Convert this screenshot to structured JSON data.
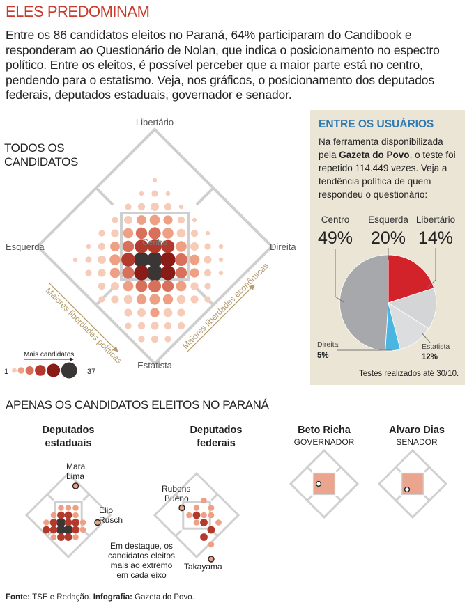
{
  "header": {
    "title": "ELES PREDOMINAM",
    "intro": "Entre os 86 candidatos eleitos no Paraná, 64% participaram do Candibook e responderam ao Questionário de Nolan, que indica o posicionamento no espectro político. Entre os eleitos, é possível perceber que a maior parte está no centro, pendendo para o estatismo. Veja, nos gráficos, o posicionamento dos deputados federais, deputados estaduais, governador e senador."
  },
  "colors": {
    "red": "#c73a2c",
    "blue": "#2f7ab3",
    "beige": "#ebe5d6",
    "scale": [
      "#f6cbb8",
      "#eea084",
      "#d8705c",
      "#b23a2d",
      "#8a1c17",
      "#3a3636"
    ],
    "pie": [
      "#a7a8ab",
      "#d2232a",
      "#d4d5d7",
      "#dcdddf",
      "#4ab5e0"
    ]
  },
  "main_chart": {
    "title_line1": "TODOS OS",
    "title_line2": "CANDIDATOS",
    "axes": {
      "top": "Libertário",
      "left": "Esquerda",
      "right": "Direita",
      "bottom": "Estatista",
      "center": "Centro",
      "left_arrow": "Maiores liberdades políticas",
      "right_arrow": "Maiores liberdades econômicas"
    },
    "legend": {
      "label": "Mais candidatos",
      "min": "1",
      "max": "37"
    }
  },
  "sidebar": {
    "title": "ENTRE OS USUÁRIOS",
    "text_before": "Na ferramenta disponibilizada pela ",
    "text_bold": "Gazeta do Povo",
    "text_after": ", o teste foi repetido 114.449 vezes. Veja a tendência política de quem respondeu o questionário:",
    "footnote": "Testes realizados até 30/10."
  },
  "chart_data": [
    {
      "type": "scatter",
      "title": "TODOS OS CANDIDATOS",
      "description_axes": [
        "Esquerda",
        "Direita",
        "Libertário",
        "Estatista"
      ],
      "size_range": [
        1,
        37
      ],
      "points": [
        {
          "x": 0.0,
          "y": -2.0,
          "n": 37
        },
        {
          "x": -1.0,
          "y": -1.0,
          "n": 34
        },
        {
          "x": 0.0,
          "y": -1.0,
          "n": 33
        },
        {
          "x": 1.0,
          "y": -1.0,
          "n": 30
        },
        {
          "x": -1.0,
          "y": -2.0,
          "n": 30
        },
        {
          "x": 1.0,
          "y": -2.0,
          "n": 28
        },
        {
          "x": 0.0,
          "y": 0.0,
          "n": 24
        },
        {
          "x": -1.0,
          "y": 0.0,
          "n": 22
        },
        {
          "x": 1.0,
          "y": 0.0,
          "n": 20
        },
        {
          "x": -2.0,
          "y": -1.0,
          "n": 24
        },
        {
          "x": 2.0,
          "y": -1.0,
          "n": 18
        },
        {
          "x": 0.0,
          "y": -3.0,
          "n": 18
        },
        {
          "x": -1.0,
          "y": 1.0,
          "n": 14
        },
        {
          "x": 0.0,
          "y": 1.0,
          "n": 16
        },
        {
          "x": 1.0,
          "y": 1.0,
          "n": 12
        },
        {
          "x": -2.0,
          "y": 0.0,
          "n": 14
        },
        {
          "x": 2.0,
          "y": 0.0,
          "n": 12
        },
        {
          "x": -2.0,
          "y": -2.0,
          "n": 16
        },
        {
          "x": 2.0,
          "y": -2.0,
          "n": 14
        },
        {
          "x": -1.0,
          "y": -3.0,
          "n": 15
        },
        {
          "x": 1.0,
          "y": -3.0,
          "n": 14
        },
        {
          "x": -3.0,
          "y": -1.0,
          "n": 12
        },
        {
          "x": 3.0,
          "y": -1.0,
          "n": 10
        },
        {
          "x": 0.0,
          "y": -4.0,
          "n": 11
        },
        {
          "x": 0.0,
          "y": 2.0,
          "n": 10
        },
        {
          "x": -1.0,
          "y": 2.0,
          "n": 8
        },
        {
          "x": 1.0,
          "y": 2.0,
          "n": 7
        },
        {
          "x": -2.0,
          "y": 1.0,
          "n": 9
        },
        {
          "x": 2.0,
          "y": 1.0,
          "n": 6
        },
        {
          "x": -3.0,
          "y": 0.0,
          "n": 8
        },
        {
          "x": 3.0,
          "y": 0.0,
          "n": 5
        },
        {
          "x": -3.0,
          "y": -2.0,
          "n": 9
        },
        {
          "x": 3.0,
          "y": -2.0,
          "n": 7
        },
        {
          "x": -2.0,
          "y": -3.0,
          "n": 10
        },
        {
          "x": 2.0,
          "y": -3.0,
          "n": 10
        },
        {
          "x": -1.0,
          "y": -4.0,
          "n": 9
        },
        {
          "x": 1.0,
          "y": -4.0,
          "n": 9
        },
        {
          "x": 0.0,
          "y": -5.0,
          "n": 7
        },
        {
          "x": -4.0,
          "y": -1.0,
          "n": 5
        },
        {
          "x": 4.0,
          "y": -1.0,
          "n": 4
        },
        {
          "x": 0.0,
          "y": 3.0,
          "n": 5
        },
        {
          "x": -1.0,
          "y": 3.0,
          "n": 3
        },
        {
          "x": 1.0,
          "y": 3.0,
          "n": 3
        },
        {
          "x": -2.0,
          "y": 2.0,
          "n": 5
        },
        {
          "x": 2.0,
          "y": 2.0,
          "n": 3
        },
        {
          "x": -3.0,
          "y": 1.0,
          "n": 4
        },
        {
          "x": 3.0,
          "y": 1.0,
          "n": 3
        },
        {
          "x": -4.0,
          "y": 0.0,
          "n": 3
        },
        {
          "x": 4.0,
          "y": 0.0,
          "n": 2
        },
        {
          "x": -4.0,
          "y": -2.0,
          "n": 4
        },
        {
          "x": 4.0,
          "y": -2.0,
          "n": 3
        },
        {
          "x": -3.0,
          "y": -3.0,
          "n": 5
        },
        {
          "x": 3.0,
          "y": -3.0,
          "n": 4
        },
        {
          "x": -2.0,
          "y": -4.0,
          "n": 6
        },
        {
          "x": 2.0,
          "y": -4.0,
          "n": 6
        },
        {
          "x": -1.0,
          "y": -5.0,
          "n": 5
        },
        {
          "x": 1.0,
          "y": -5.0,
          "n": 6
        },
        {
          "x": 0.0,
          "y": -6.0,
          "n": 4
        },
        {
          "x": -5.0,
          "y": -1.0,
          "n": 2
        },
        {
          "x": 5.0,
          "y": -1.0,
          "n": 1
        },
        {
          "x": 0.0,
          "y": 4.0,
          "n": 2
        },
        {
          "x": -1.0,
          "y": 4.0,
          "n": 1
        },
        {
          "x": 1.0,
          "y": 4.0,
          "n": 1
        },
        {
          "x": -2.0,
          "y": 3.0,
          "n": 2
        },
        {
          "x": 2.0,
          "y": 3.0,
          "n": 1
        },
        {
          "x": -3.0,
          "y": 2.0,
          "n": 2
        },
        {
          "x": 3.0,
          "y": 2.0,
          "n": 1
        },
        {
          "x": -4.0,
          "y": 1.0,
          "n": 2
        },
        {
          "x": 4.0,
          "y": 1.0,
          "n": 1
        },
        {
          "x": -5.0,
          "y": 0.0,
          "n": 1
        },
        {
          "x": 5.0,
          "y": 0.0,
          "n": 1
        },
        {
          "x": -4.0,
          "y": -3.0,
          "n": 3
        },
        {
          "x": 4.0,
          "y": -3.0,
          "n": 2
        },
        {
          "x": -3.0,
          "y": -4.0,
          "n": 4
        },
        {
          "x": 3.0,
          "y": -4.0,
          "n": 4
        },
        {
          "x": -2.0,
          "y": -5.0,
          "n": 4
        },
        {
          "x": 2.0,
          "y": -5.0,
          "n": 4
        },
        {
          "x": -1.0,
          "y": -6.0,
          "n": 3
        },
        {
          "x": 1.0,
          "y": -6.0,
          "n": 3
        },
        {
          "x": 0.0,
          "y": -7.0,
          "n": 3
        },
        {
          "x": -5.0,
          "y": -2.0,
          "n": 2
        },
        {
          "x": 5.0,
          "y": -2.0,
          "n": 1
        },
        {
          "x": 0.0,
          "y": 5.0,
          "n": 1
        },
        {
          "x": -6.0,
          "y": -1.0,
          "n": 1
        },
        {
          "x": -4.0,
          "y": -4.0,
          "n": 2
        },
        {
          "x": 4.0,
          "y": -4.0,
          "n": 2
        },
        {
          "x": -2.0,
          "y": -6.0,
          "n": 2
        },
        {
          "x": 2.0,
          "y": -6.0,
          "n": 3
        },
        {
          "x": -1.0,
          "y": -7.0,
          "n": 2
        },
        {
          "x": 1.0,
          "y": -7.0,
          "n": 2
        }
      ]
    },
    {
      "type": "pie",
      "title": "ENTRE OS USUÁRIOS",
      "slices": [
        {
          "label": "Centro",
          "value": 49,
          "display": "49%"
        },
        {
          "label": "Esquerda",
          "value": 20,
          "display": "20%"
        },
        {
          "label": "Libertário",
          "value": 14,
          "display": "14%"
        },
        {
          "label": "Estatista",
          "value": 12,
          "display": "12%"
        },
        {
          "label": "Direita",
          "value": 5,
          "display": "5%"
        }
      ]
    },
    {
      "type": "scatter",
      "section_title": "APENAS OS CANDIDATOS ELEITOS NO PARANÁ",
      "charts": [
        {
          "id": "estaduais",
          "title_line1": "Deputados",
          "title_line2": "estaduais",
          "points": [
            {
              "x": 0.0,
              "y": -2.0,
              "n": 3
            },
            {
              "x": -1.0,
              "y": -1.0,
              "n": 3
            },
            {
              "x": 0.0,
              "y": -1.0,
              "n": 2
            },
            {
              "x": 1.0,
              "y": -1.0,
              "n": 2
            },
            {
              "x": -1.0,
              "y": -2.0,
              "n": 3
            },
            {
              "x": 1.0,
              "y": -2.0,
              "n": 2
            },
            {
              "x": 0.0,
              "y": 0.0,
              "n": 2
            },
            {
              "x": -1.0,
              "y": 0.0,
              "n": 2
            },
            {
              "x": 1.0,
              "y": 0.0,
              "n": 1
            },
            {
              "x": -2.0,
              "y": -1.0,
              "n": 2
            },
            {
              "x": 2.0,
              "y": -1.0,
              "n": 1
            },
            {
              "x": 0.0,
              "y": -3.0,
              "n": 2
            },
            {
              "x": -1.0,
              "y": -3.0,
              "n": 2
            },
            {
              "x": 1.0,
              "y": -3.0,
              "n": 1
            },
            {
              "x": -2.0,
              "y": -2.0,
              "n": 2
            },
            {
              "x": -2.0,
              "y": 0.0,
              "n": 1
            },
            {
              "x": 0.0,
              "y": 1.0,
              "n": 1
            },
            {
              "x": -1.0,
              "y": 1.0,
              "n": 1
            },
            {
              "x": -2.0,
              "y": -3.0,
              "n": 1
            },
            {
              "x": 2.0,
              "y": -2.0,
              "n": 1
            },
            {
              "x": -3.0,
              "y": -2.0,
              "n": 2
            },
            {
              "x": -3.0,
              "y": -1.0,
              "n": 1
            },
            {
              "x": 1.0,
              "y": 1.0,
              "n": 1
            }
          ],
          "highlights": [
            {
              "x": 1.0,
              "y": 4.0,
              "name1": "Mara",
              "name2": "Lima"
            },
            {
              "x": 4.0,
              "y": -1.0,
              "name1": "Elio",
              "name2": "Rusch"
            }
          ]
        },
        {
          "id": "federais",
          "title_line1": "Deputados",
          "title_line2": "federais",
          "points": [
            {
              "x": 0.0,
              "y": 0.0,
              "n": 2
            },
            {
              "x": 1.0,
              "y": -1.0,
              "n": 2
            },
            {
              "x": 0.0,
              "y": -1.0,
              "n": 1
            },
            {
              "x": 2.0,
              "y": -2.0,
              "n": 2
            },
            {
              "x": 1.0,
              "y": -3.0,
              "n": 2
            },
            {
              "x": 2.0,
              "y": -4.0,
              "n": 1
            },
            {
              "x": 1.0,
              "y": 0.0,
              "n": 1
            },
            {
              "x": 2.0,
              "y": 0.0,
              "n": 1
            },
            {
              "x": 3.0,
              "y": -1.0,
              "n": 1
            },
            {
              "x": 1.0,
              "y": 2.0,
              "n": 1
            },
            {
              "x": 2.0,
              "y": 1.0,
              "n": 1
            },
            {
              "x": -1.0,
              "y": 0.0,
              "n": 1
            },
            {
              "x": 0.0,
              "y": 1.0,
              "n": 1
            }
          ],
          "highlights": [
            {
              "x": -2.0,
              "y": 1.0,
              "name1": "Rubens",
              "name2": "Bueno"
            },
            {
              "x": 2.0,
              "y": -6.0,
              "name1": "Takayama",
              "name2": ""
            }
          ],
          "note_lines": [
            "Em destaque, os",
            "candidatos eleitos",
            "mais ao extremo",
            "em cada eixo"
          ]
        },
        {
          "id": "governador",
          "title_line1": "Beto Richa",
          "title_line2": "GOVERNADOR",
          "points": [],
          "highlights": [
            {
              "x": -1.0,
              "y": 0.0,
              "name1": "",
              "name2": ""
            }
          ]
        },
        {
          "id": "senador",
          "title_line1": "Alvaro Dias",
          "title_line2": "SENADOR",
          "points": [],
          "highlights": [
            {
              "x": -1.0,
              "y": -1.0,
              "name1": "",
              "name2": ""
            }
          ]
        }
      ]
    }
  ],
  "footer": {
    "fonte_label": "Fonte:",
    "fonte_value": " TSE e Redação. ",
    "info_label": "Infografia:",
    "info_value": " Gazeta do Povo."
  }
}
